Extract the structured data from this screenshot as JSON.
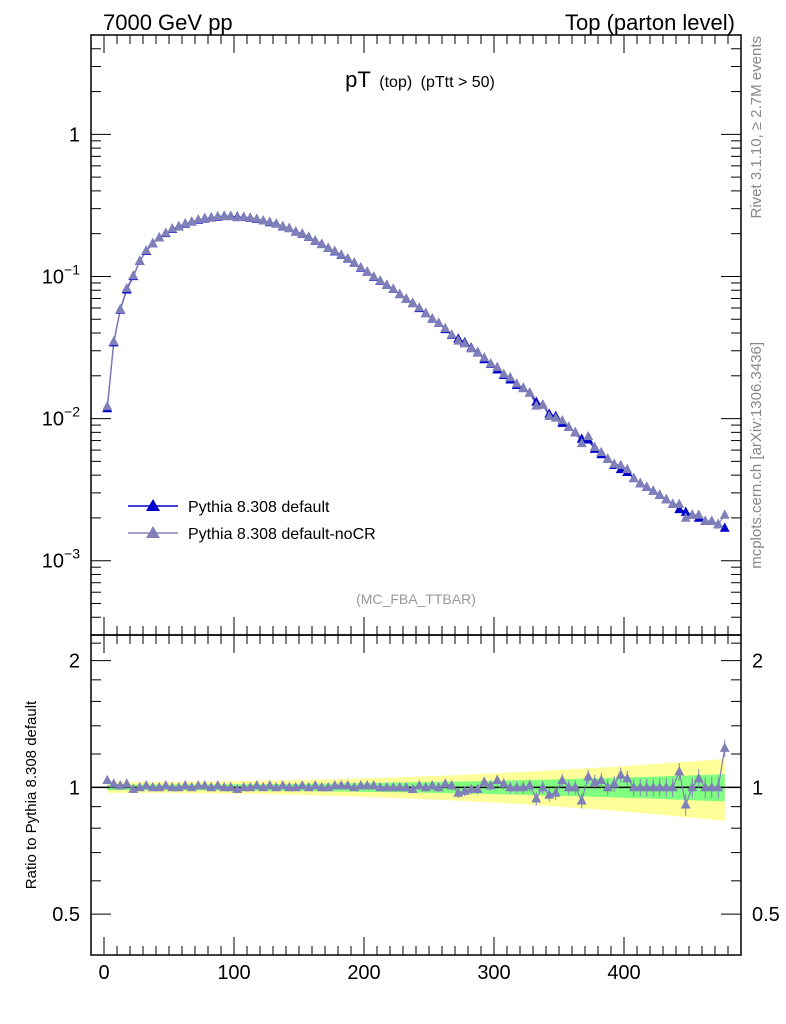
{
  "header": {
    "left": "7000 GeV pp",
    "right": "Top (parton level)"
  },
  "plot_title": {
    "main": "pT",
    "sub": "(top)",
    "cut": "(pTtt > 50)"
  },
  "side_text": {
    "rivet": "Rivet 3.1.10, ≥ 2.7M events",
    "mcplots": "mcplots.cern.ch [arXiv:1306.3436]"
  },
  "analysis_tag": "(MC_FBA_TTBAR)",
  "ratio_ylabel": "Ratio to Pythia 8.308 default",
  "legend": [
    {
      "label": "Pythia 8.308 default",
      "color": "#0000cc"
    },
    {
      "label": "Pythia 8.308 default-noCR",
      "color": "#8080b8"
    }
  ],
  "top_ticks": [
    {
      "base": "10",
      "exp": "−3",
      "value": 0.001
    },
    {
      "base": "10",
      "exp": "−2",
      "value": 0.01
    },
    {
      "base": "10",
      "exp": "−1",
      "value": 0.1
    },
    {
      "base": "1",
      "exp": "",
      "value": 1
    }
  ],
  "ratio_ticks": [
    "0.5",
    "1",
    "2"
  ],
  "x_ticks": [
    "0",
    "100",
    "200",
    "300",
    "400"
  ],
  "colors": {
    "band_outer": "#ffff99",
    "band_inner": "#80ff80",
    "default": "#0000cc",
    "noCR": "#8080b8"
  },
  "chart_data": {
    "type": "line",
    "x": [
      2.5,
      7.5,
      12.5,
      17.5,
      22.5,
      27.5,
      32.5,
      37.5,
      42.5,
      47.5,
      52.5,
      57.5,
      62.5,
      67.5,
      72.5,
      77.5,
      82.5,
      87.5,
      92.5,
      97.5,
      102.5,
      107.5,
      112.5,
      117.5,
      122.5,
      127.5,
      132.5,
      137.5,
      142.5,
      147.5,
      152.5,
      157.5,
      162.5,
      167.5,
      172.5,
      177.5,
      182.5,
      187.5,
      192.5,
      197.5,
      202.5,
      207.5,
      212.5,
      217.5,
      222.5,
      227.5,
      232.5,
      237.5,
      242.5,
      247.5,
      252.5,
      257.5,
      262.5,
      267.5,
      272.5,
      277.5,
      282.5,
      287.5,
      292.5,
      297.5,
      302.5,
      307.5,
      312.5,
      317.5,
      322.5,
      327.5,
      332.5,
      337.5,
      342.5,
      347.5,
      352.5,
      357.5,
      362.5,
      367.5,
      372.5,
      377.5,
      382.5,
      387.5,
      392.5,
      397.5,
      402.5,
      407.5,
      412.5,
      417.5,
      422.5,
      427.5,
      432.5,
      437.5,
      442.5,
      447.5,
      452.5,
      457.5,
      462.5,
      467.5,
      472.5,
      477.5
    ],
    "series": [
      {
        "name": "Pythia 8.308 default",
        "values": [
          0.0118,
          0.0343,
          0.0583,
          0.0808,
          0.1002,
          0.1285,
          0.1508,
          0.171,
          0.1877,
          0.2012,
          0.2153,
          0.2247,
          0.2342,
          0.2423,
          0.2493,
          0.2553,
          0.2594,
          0.2627,
          0.2661,
          0.2657,
          0.2629,
          0.2613,
          0.2579,
          0.2531,
          0.2468,
          0.2399,
          0.2346,
          0.2246,
          0.2182,
          0.2064,
          0.1992,
          0.1891,
          0.178,
          0.1688,
          0.1584,
          0.1498,
          0.1415,
          0.1333,
          0.1245,
          0.1148,
          0.1076,
          0.0991,
          0.0928,
          0.087,
          0.0814,
          0.0749,
          0.0695,
          0.0649,
          0.0597,
          0.0551,
          0.0504,
          0.0469,
          0.0425,
          0.0387,
          0.0364,
          0.0344,
          0.0315,
          0.0292,
          0.0261,
          0.0242,
          0.0221,
          0.0202,
          0.0188,
          0.0172,
          0.0164,
          0.0152,
          0.0131,
          0.0125,
          0.0108,
          0.0104,
          0.0093,
          0.0087,
          0.008,
          0.0072,
          0.0071,
          0.0061,
          0.0056,
          0.0052,
          0.0047,
          0.0044,
          0.0042,
          0.0038,
          0.0035,
          0.0033,
          0.0031,
          0.0029,
          0.0027,
          0.0025,
          0.0023,
          0.0022,
          0.0021,
          0.002,
          0.0019,
          0.0019,
          0.0018,
          0.0017
        ],
        "color": "#0000cc"
      },
      {
        "name": "Pythia 8.308 default-noCR",
        "values": [
          0.0122,
          0.0349,
          0.0589,
          0.0825,
          0.1015,
          0.1283,
          0.1521,
          0.171,
          0.1876,
          0.2028,
          0.2169,
          0.2237,
          0.2363,
          0.2426,
          0.2517,
          0.2575,
          0.2584,
          0.2649,
          0.2653,
          0.2648,
          0.2601,
          0.2624,
          0.2588,
          0.2545,
          0.247,
          0.2419,
          0.235,
          0.2257,
          0.2184,
          0.206,
          0.2003,
          0.1895,
          0.179,
          0.1681,
          0.1586,
          0.151,
          0.1422,
          0.1339,
          0.1251,
          0.1159,
          0.1082,
          0.0999,
          0.0935,
          0.087,
          0.0815,
          0.0749,
          0.0697,
          0.0645,
          0.0604,
          0.0549,
          0.0507,
          0.0469,
          0.0432,
          0.039,
          0.0353,
          0.0337,
          0.0311,
          0.029,
          0.0269,
          0.0244,
          0.023,
          0.0206,
          0.0195,
          0.0176,
          0.0163,
          0.0152,
          0.0123,
          0.0125,
          0.0104,
          0.0101,
          0.0097,
          0.0087,
          0.008,
          0.0067,
          0.0075,
          0.0063,
          0.0058,
          0.0052,
          0.0048,
          0.0047,
          0.0044,
          0.0038,
          0.0035,
          0.0033,
          0.0031,
          0.0029,
          0.0027,
          0.0025,
          0.0025,
          0.002,
          0.0021,
          0.0021,
          0.0019,
          0.0019,
          0.0018,
          0.0021
        ],
        "color": "#8080b8"
      }
    ],
    "ratio": {
      "ylabel": "Ratio to Pythia 8.308 default",
      "ylim": [
        0.4,
        2.3
      ],
      "values": [
        1.04,
        1.02,
        1.01,
        1.02,
        0.99,
        1.0,
        1.01,
        1.0,
        1.0,
        1.01,
        1.0,
        1.0,
        1.01,
        1.0,
        1.01,
        1.01,
        1.0,
        1.01,
        1.0,
        1.0,
        0.99,
        1.0,
        1.0,
        1.01,
        1.0,
        1.01,
        1.0,
        1.01,
        1.0,
        1.0,
        1.01,
        1.0,
        1.01,
        1.0,
        1.0,
        1.01,
        1.01,
        1.01,
        1.0,
        1.01,
        1.01,
        1.01,
        1.0,
        1.0,
        1.0,
        1.0,
        1.0,
        0.99,
        1.01,
        1.0,
        1.01,
        1.0,
        1.02,
        1.01,
        0.97,
        0.98,
        0.99,
        0.99,
        1.03,
        1.01,
        1.04,
        1.02,
        1.0,
        1.0,
        1.0,
        1.01,
        0.94,
        1.0,
        0.96,
        0.97,
        1.04,
        1.0,
        1.0,
        0.93,
        1.06,
        1.03,
        1.04,
        1.0,
        1.02,
        1.07,
        1.05,
        1.0,
        1.0,
        1.0,
        1.0,
        1.0,
        1.0,
        1.0,
        1.09,
        0.91,
        1.0,
        1.05,
        1.0,
        1.0,
        1.0,
        1.24
      ],
      "reference": 1.0
    },
    "xlim": [
      -10,
      490
    ],
    "ylim_top": [
      0.0003,
      5.0
    ],
    "y_scale": "log",
    "legend_position": "lower-left"
  }
}
